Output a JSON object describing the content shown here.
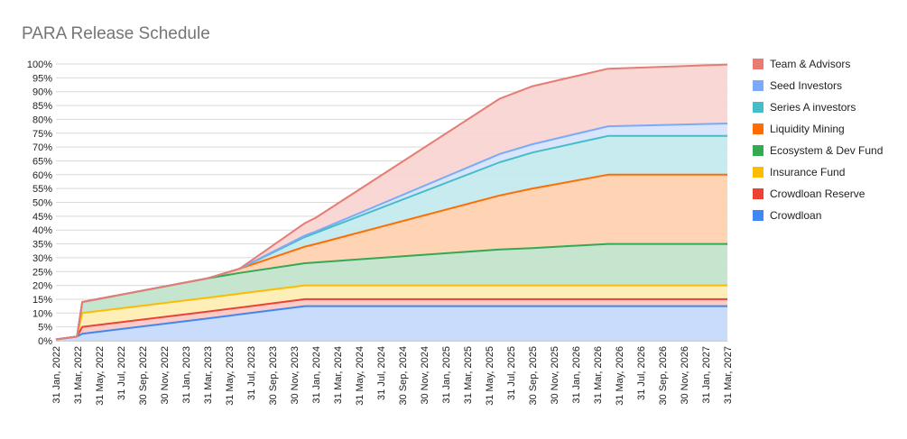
{
  "chart_data": {
    "type": "area",
    "stacked": true,
    "title": "PARA Release Schedule",
    "xlabel": "",
    "ylabel": "",
    "ylim": [
      0,
      100
    ],
    "y_ticks": [
      "0%",
      "5%",
      "10%",
      "15%",
      "20%",
      "25%",
      "30%",
      "35%",
      "40%",
      "45%",
      "50%",
      "55%",
      "60%",
      "65%",
      "70%",
      "75%",
      "80%",
      "85%",
      "90%",
      "95%",
      "100%"
    ],
    "x_ticks": [
      "31 Jan, 2022",
      "31 Mar, 2022",
      "31 May, 2022",
      "31 Jul, 2022",
      "30 Sep, 2022",
      "30 Nov, 2022",
      "31 Jan, 2023",
      "31 Mar, 2023",
      "31 May, 2023",
      "31 Jul, 2023",
      "30 Sep, 2023",
      "30 Nov, 2023",
      "31 Jan, 2024",
      "31 Mar, 2024",
      "31 May, 2024",
      "31 Jul, 2024",
      "30 Sep, 2024",
      "30 Nov, 2024",
      "31 Jan, 2025",
      "31 Mar, 2025",
      "31 May, 2025",
      "31 Jul, 2025",
      "30 Sep, 2025",
      "30 Nov, 2025",
      "31 Jan, 2026",
      "31 Mar, 2026",
      "31 May, 2026",
      "31 Jul, 2026",
      "30 Sep, 2026",
      "30 Nov, 2026",
      "31 Jan, 2027",
      "31 Mar, 2027"
    ],
    "grid": true,
    "legend_position": "right",
    "x": [
      "2022-01-31",
      "2022-03-31",
      "2022-04-15",
      "2023-03-31",
      "2023-06-30",
      "2023-12-31",
      "2024-01-31",
      "2025-06-30",
      "2025-09-30",
      "2026-04-30",
      "2027-03-31"
    ],
    "series_cumulative": [
      {
        "name": "Crowdloan",
        "color": "#4285f4",
        "fill": "#c6dafc",
        "values": [
          0.5,
          1.5,
          2.5,
          8.0,
          9.5,
          12.5,
          12.5,
          12.5,
          12.5,
          12.5,
          12.5
        ]
      },
      {
        "name": "Crowdloan Reserve",
        "color": "#ea4335",
        "fill": "#f9c9c5",
        "values": [
          0.5,
          1.5,
          5.0,
          10.5,
          12.0,
          15.0,
          15.0,
          15.0,
          15.0,
          15.0,
          15.0
        ]
      },
      {
        "name": "Insurance Fund",
        "color": "#fbbc04",
        "fill": "#feeeb4",
        "values": [
          0.5,
          1.5,
          10.0,
          15.5,
          17.0,
          20.0,
          20.0,
          20.0,
          20.0,
          20.0,
          20.0
        ]
      },
      {
        "name": "Ecosystem & Dev Fund",
        "color": "#34a853",
        "fill": "#c2e4cb",
        "values": [
          0.5,
          1.5,
          14.0,
          22.5,
          24.5,
          28.0,
          28.3,
          33.0,
          33.5,
          35.0,
          35.0
        ]
      },
      {
        "name": "Liquidity Mining",
        "color": "#ff6d01",
        "fill": "#ffd2b1",
        "values": [
          0.5,
          1.5,
          14.0,
          22.5,
          26.0,
          34.0,
          35.0,
          52.5,
          55.0,
          60.0,
          60.0
        ]
      },
      {
        "name": "Series A investors",
        "color": "#46bdc6",
        "fill": "#c4eaed",
        "values": [
          0.5,
          1.5,
          14.0,
          22.5,
          26.0,
          37.5,
          39.0,
          64.5,
          68.0,
          74.0,
          74.0
        ]
      },
      {
        "name": "Seed Investors",
        "color": "#7baaf7",
        "fill": "#d6e5fd",
        "values": [
          0.5,
          1.5,
          14.0,
          22.5,
          26.0,
          38.0,
          39.5,
          67.5,
          71.0,
          77.5,
          78.5
        ]
      },
      {
        "name": "Team & Advisors",
        "color": "#e67c73",
        "fill": "#f8d5d2",
        "values": [
          0.5,
          1.5,
          14.0,
          22.5,
          26.0,
          42.5,
          44.5,
          87.5,
          92.0,
          98.3,
          99.8
        ]
      }
    ]
  }
}
